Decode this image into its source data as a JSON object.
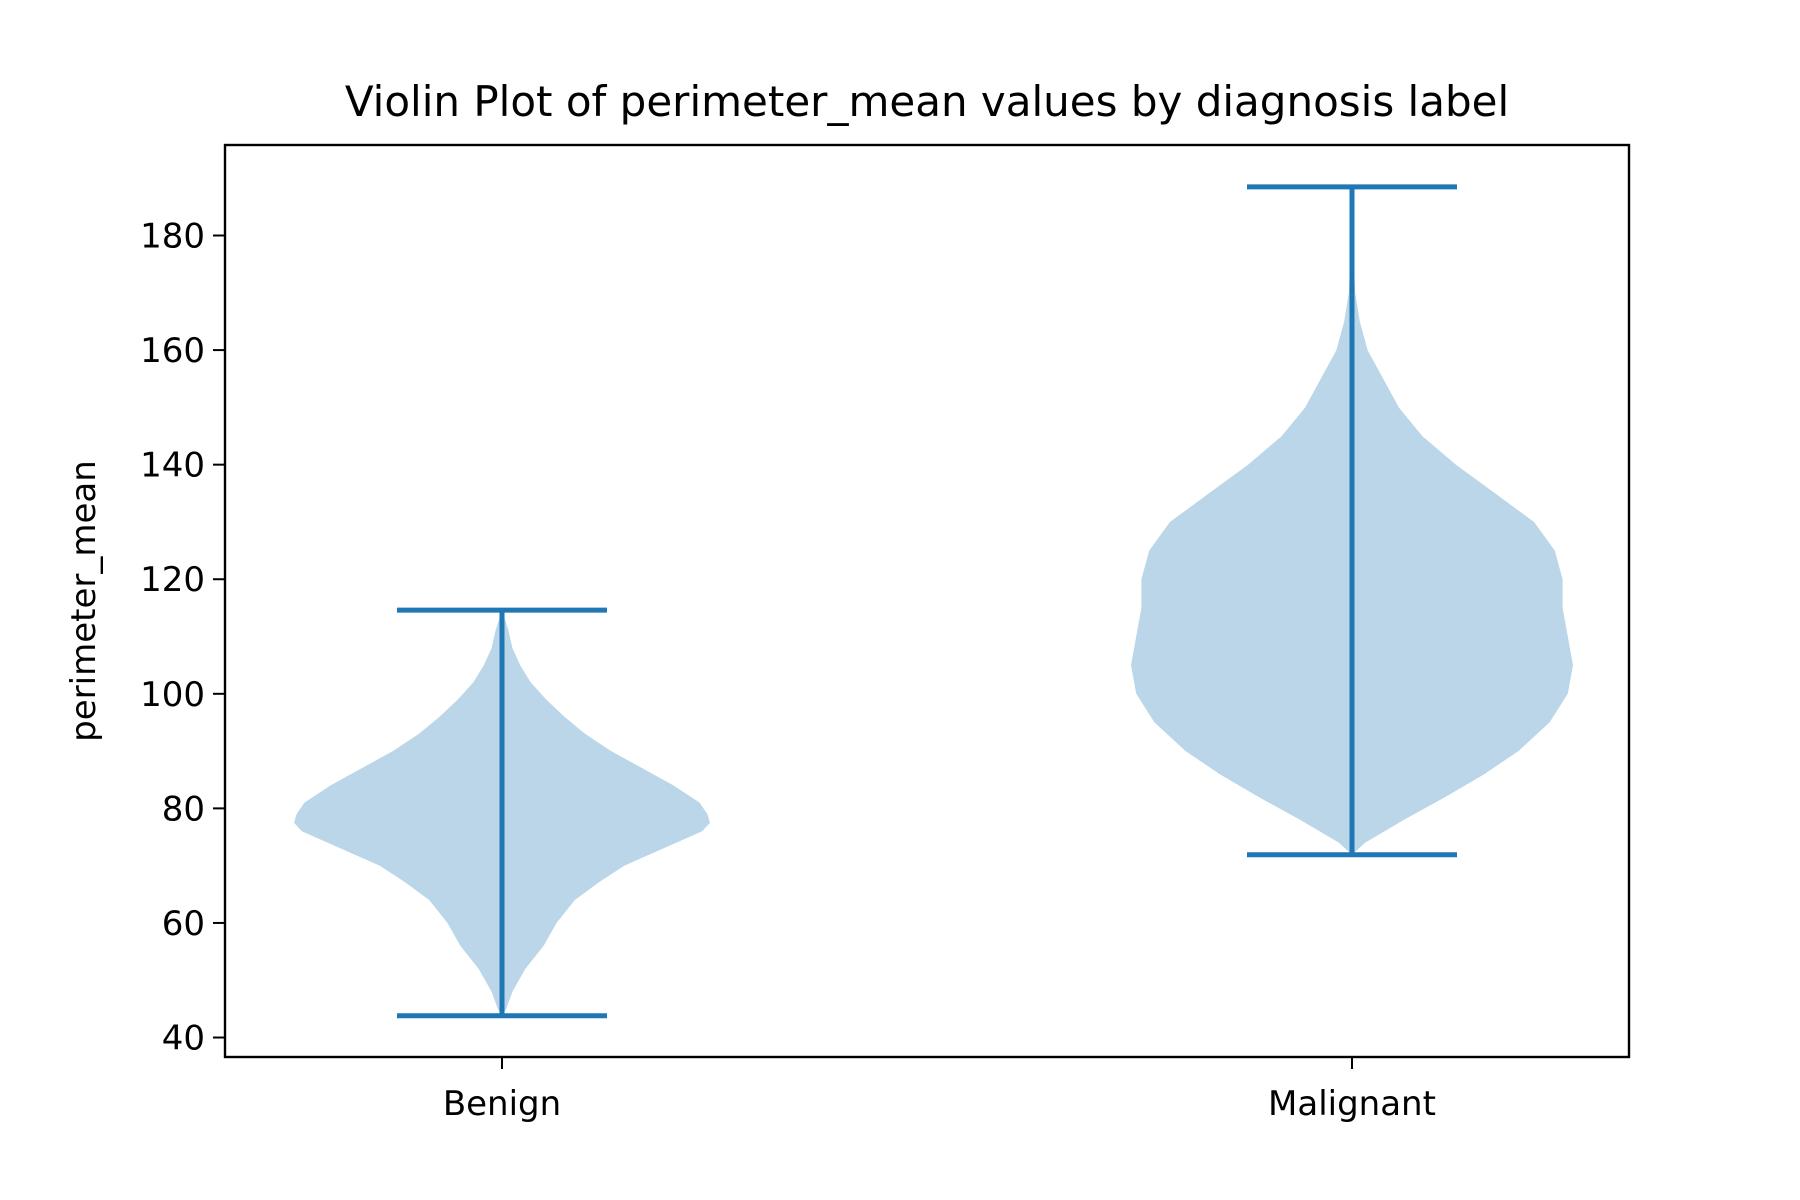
{
  "chart_data": {
    "type": "violin",
    "title": "Violin Plot of perimeter_mean values by diagnosis label",
    "xlabel": "",
    "ylabel": "perimeter_mean",
    "categories": [
      "Benign",
      "Malignant"
    ],
    "ylim": [
      36.6,
      195.8
    ],
    "yticks": [
      40,
      60,
      80,
      100,
      120,
      140,
      160,
      180
    ],
    "grid": false,
    "colors": {
      "fill": "#bbd6e8",
      "line": "#1f77b4"
    },
    "violins": [
      {
        "name": "Benign",
        "min": 43.79,
        "max": 114.6,
        "density_halfwidth": [
          [
            43.79,
            0.0
          ],
          [
            45,
            0.016
          ],
          [
            48,
            0.04
          ],
          [
            52,
            0.09
          ],
          [
            56,
            0.16
          ],
          [
            60,
            0.21
          ],
          [
            64,
            0.28
          ],
          [
            67,
            0.37
          ],
          [
            70,
            0.47
          ],
          [
            73,
            0.62
          ],
          [
            76,
            0.77
          ],
          [
            77.5,
            0.8
          ],
          [
            79,
            0.79
          ],
          [
            81,
            0.76
          ],
          [
            84,
            0.66
          ],
          [
            87,
            0.54
          ],
          [
            90,
            0.42
          ],
          [
            93,
            0.32
          ],
          [
            96,
            0.24
          ],
          [
            99,
            0.17
          ],
          [
            102,
            0.11
          ],
          [
            105,
            0.07
          ],
          [
            108,
            0.04
          ],
          [
            111,
            0.025
          ],
          [
            114.6,
            0.0
          ]
        ]
      },
      {
        "name": "Malignant",
        "min": 71.9,
        "max": 188.5,
        "density_halfwidth": [
          [
            71.9,
            0.0
          ],
          [
            74,
            0.05
          ],
          [
            78,
            0.2
          ],
          [
            82,
            0.36
          ],
          [
            86,
            0.51
          ],
          [
            90,
            0.64
          ],
          [
            95,
            0.76
          ],
          [
            100,
            0.83
          ],
          [
            105,
            0.85
          ],
          [
            110,
            0.83
          ],
          [
            115,
            0.81
          ],
          [
            120,
            0.81
          ],
          [
            125,
            0.78
          ],
          [
            130,
            0.7
          ],
          [
            135,
            0.55
          ],
          [
            140,
            0.4
          ],
          [
            145,
            0.27
          ],
          [
            150,
            0.18
          ],
          [
            155,
            0.12
          ],
          [
            160,
            0.06
          ],
          [
            165,
            0.03
          ],
          [
            170,
            0.012
          ],
          [
            175,
            0.008
          ],
          [
            180,
            0.006
          ],
          [
            188.5,
            0.0
          ]
        ]
      }
    ]
  }
}
